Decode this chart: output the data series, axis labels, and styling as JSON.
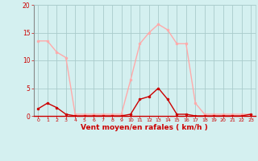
{
  "x": [
    0,
    1,
    2,
    3,
    4,
    5,
    6,
    7,
    8,
    9,
    10,
    11,
    12,
    13,
    14,
    15,
    16,
    17,
    18,
    19,
    20,
    21,
    22,
    23
  ],
  "y_moyen": [
    1.3,
    2.3,
    1.5,
    0.3,
    0.0,
    0.0,
    0.0,
    0.0,
    0.0,
    0.0,
    0.3,
    3.0,
    3.5,
    5.0,
    3.0,
    0.3,
    0.3,
    0.0,
    0.0,
    0.0,
    0.0,
    0.0,
    0.0,
    0.3
  ],
  "y_rafales": [
    13.5,
    13.5,
    11.5,
    10.5,
    0.3,
    0.3,
    0.3,
    0.3,
    0.3,
    0.3,
    6.5,
    13.0,
    15.0,
    16.5,
    15.5,
    13.0,
    13.0,
    2.3,
    0.3,
    0.3,
    0.3,
    0.3,
    0.3,
    0.3
  ],
  "color_moyen": "#cc0000",
  "color_rafales": "#ffaaaa",
  "bg_color": "#d4f0f0",
  "grid_color": "#aacccc",
  "xlabel": "Vent moyen/en rafales ( km/h )",
  "xlabel_color": "#cc0000",
  "tick_color": "#cc0000",
  "ylim": [
    0,
    20
  ],
  "yticks": [
    0,
    5,
    10,
    15,
    20
  ],
  "xlim": [
    -0.5,
    23.5
  ]
}
